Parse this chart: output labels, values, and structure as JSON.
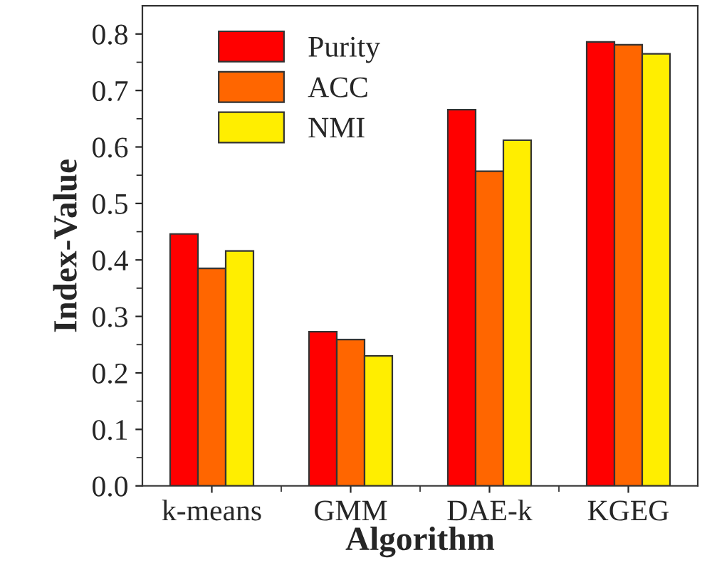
{
  "chart_data": {
    "type": "bar",
    "xlabel": "Algorithm",
    "ylabel": "Index-Value",
    "categories": [
      "k-means",
      "GMM",
      "DAE-k",
      "KGEG"
    ],
    "series": [
      {
        "name": "Purity",
        "color": "#ff0000",
        "values": [
          0.446,
          0.273,
          0.666,
          0.786
        ]
      },
      {
        "name": "ACC",
        "color": "#ff6600",
        "values": [
          0.385,
          0.259,
          0.557,
          0.781
        ]
      },
      {
        "name": "NMI",
        "color": "#ffee00",
        "values": [
          0.416,
          0.23,
          0.612,
          0.765
        ]
      }
    ],
    "ylim": [
      0,
      0.85
    ],
    "yticks": [
      {
        "value": 0,
        "label": "0.0"
      },
      0.1,
      0.2,
      0.3,
      0.4,
      0.5,
      0.6,
      0.7,
      0.8
    ],
    "legend": "top left",
    "grid": false
  }
}
